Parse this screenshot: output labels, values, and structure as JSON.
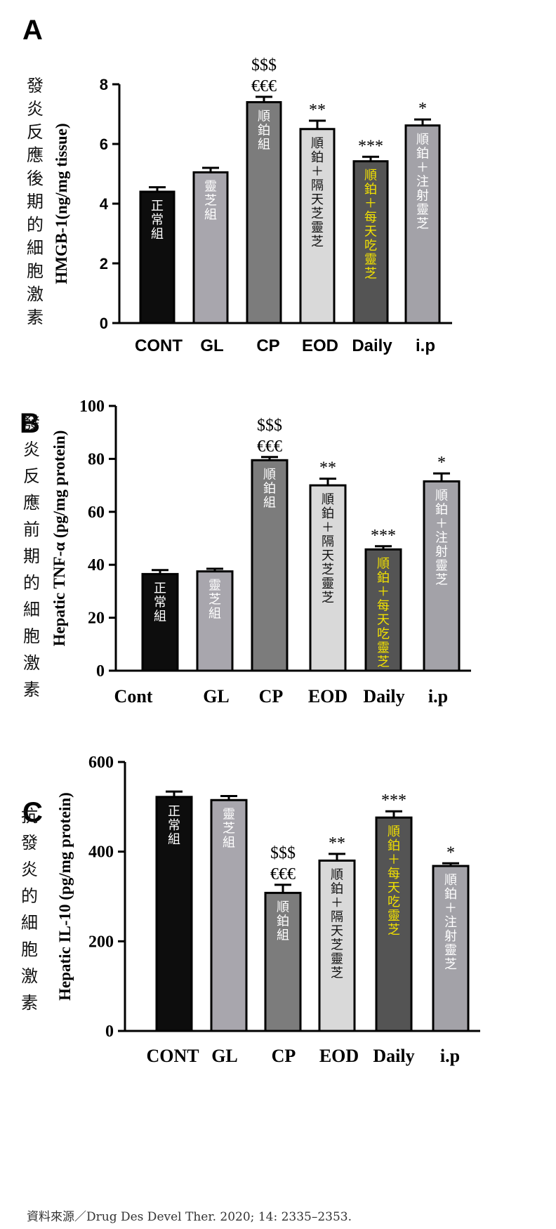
{
  "source_text": "資料來源／Drug Des Devel Ther. 2020; 14: 2335–2353.",
  "colors": {
    "CONT": "#0d0d0d",
    "GL": "#a8a6ad",
    "CP": "#7c7c7c",
    "EOD": "#d9d9d9",
    "Daily": "#545454",
    "ip": "#a3a2a8",
    "highlight_text": "#f2e100"
  },
  "chart_data": [
    {
      "panel": "A",
      "type": "bar",
      "ylabel": "HMGB-1(ng/mg tissue)",
      "side_label": "發炎反應後期的細胞激素",
      "categories": [
        "CONT",
        "GL",
        "CP",
        "EOD",
        "Daily",
        "i.p"
      ],
      "values": [
        4.4,
        5.05,
        7.4,
        6.5,
        5.42,
        6.62
      ],
      "errors": [
        0.15,
        0.15,
        0.18,
        0.28,
        0.15,
        0.2
      ],
      "ylim": [
        0,
        8
      ],
      "yticks": [
        "0",
        "2",
        "4",
        "6",
        "8"
      ],
      "ytick_values": [
        0,
        2,
        4,
        6,
        8
      ],
      "significance": [
        "",
        "",
        "$$$\n€€€",
        "**",
        "***",
        "*"
      ],
      "bar_text": [
        "正常組",
        "靈芝組",
        "順鉑組",
        "順鉑＋隔天芝靈芝",
        "順鉑＋每天吃靈芝",
        "順鉑＋注射靈芝"
      ]
    },
    {
      "panel": "B",
      "type": "bar",
      "ylabel": "Hepatic TNF-α (pg/mg protein)",
      "side_label": "發炎反應前期的細胞激素",
      "categories": [
        "Cont",
        "GL",
        "CP",
        "EOD",
        "Daily",
        "i.p"
      ],
      "values": [
        36.5,
        37.5,
        79.5,
        70.0,
        45.8,
        71.5
      ],
      "errors": [
        1.5,
        1.0,
        1.2,
        2.5,
        1.2,
        3.0
      ],
      "ylim": [
        0,
        100
      ],
      "yticks": [
        "0",
        "20",
        "40",
        "60",
        "80",
        "100"
      ],
      "ytick_values": [
        0,
        20,
        40,
        60,
        80,
        100
      ],
      "significance": [
        "",
        "",
        "$$$\n€€€",
        "**",
        "***",
        "*"
      ],
      "bar_text": [
        "正常組",
        "靈芝組",
        "順鉑組",
        "順鉑＋隔天芝靈芝",
        "順鉑＋每天吃靈芝",
        "順鉑＋注射靈芝"
      ]
    },
    {
      "panel": "C",
      "type": "bar",
      "ylabel": "Hepatic IL-10 (pg/mg protein)",
      "side_label": "抗發炎的細胞激素",
      "categories": [
        "CONT",
        "GL",
        "CP",
        "EOD",
        "Daily",
        "i.p"
      ],
      "values": [
        522,
        515,
        308,
        380,
        476,
        368
      ],
      "errors": [
        12,
        9,
        18,
        15,
        14,
        6
      ],
      "ylim": [
        0,
        600
      ],
      "yticks": [
        "0",
        "200",
        "400",
        "600"
      ],
      "ytick_values": [
        0,
        200,
        400,
        600
      ],
      "significance": [
        "",
        "",
        "$$$\n€€€",
        "**",
        "***",
        "*"
      ],
      "bar_text": [
        "正常組",
        "靈芝組",
        "順鉑組",
        "順鉑＋隔天芝靈芝",
        "順鉑＋每天吃靈芝",
        "順鉑＋注射靈芝"
      ]
    }
  ]
}
